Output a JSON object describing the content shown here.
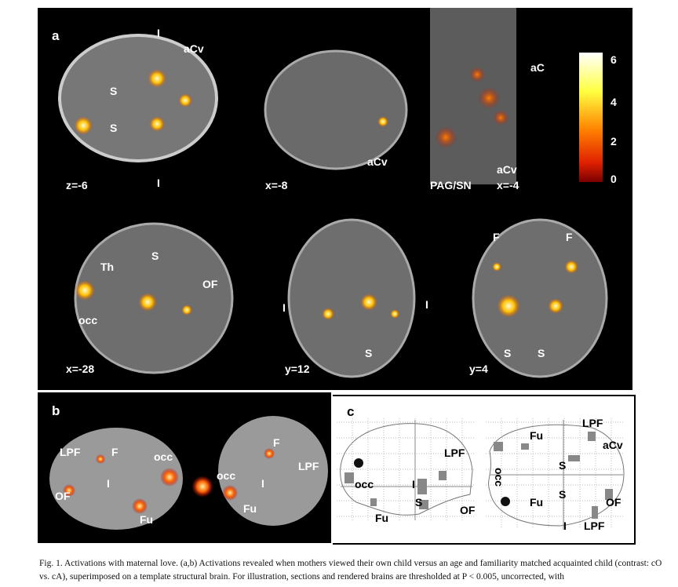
{
  "panel_a": {
    "label": "a",
    "slices": [
      {
        "coord": "z=-6",
        "labels": [
          "I",
          "aCv",
          "S",
          "S",
          "I"
        ]
      },
      {
        "coord": "x=-8",
        "labels": [
          "aCv"
        ]
      },
      {
        "coord": "x=-4",
        "labels": [
          "aC",
          "PAG/SN",
          "aCv"
        ]
      },
      {
        "coord": "x=-28",
        "labels": [
          "Th",
          "S",
          "OF",
          "occ"
        ]
      },
      {
        "coord": "y=12",
        "labels": [
          "I",
          "I",
          "S"
        ]
      },
      {
        "coord": "y=4",
        "labels": [
          "F",
          "F",
          "S",
          "S"
        ]
      }
    ],
    "colorbar": {
      "ticks": [
        "6",
        "4",
        "2",
        "0"
      ],
      "colors": [
        "#ffffff",
        "#ffff40",
        "#ffa000",
        "#e02000",
        "#7a0000"
      ]
    }
  },
  "panel_b": {
    "label": "b",
    "left_brain": [
      "LPF",
      "F",
      "occ",
      "OF",
      "I",
      "Fu"
    ],
    "right_brain": [
      "F",
      "occ",
      "I",
      "LPF",
      "Fu"
    ]
  },
  "panel_c": {
    "label": "c",
    "sagittal": [
      "LPF",
      "occ",
      "I",
      "S",
      "OF",
      "Fu"
    ],
    "axial": [
      "LPF",
      "Fu",
      "aCv",
      "S",
      "occ",
      "S",
      "Fu",
      "OF",
      "I",
      "LPF"
    ]
  },
  "caption": "Fig. 1. Activations with maternal love. (a,b) Activations revealed when mothers viewed their own child versus an age and familiarity matched acquainted child (contrast: cO vs. cA), superimposed on a template structural brain. For illustration, sections and rendered brains are thresholded at P < 0.005, uncorrected, with"
}
